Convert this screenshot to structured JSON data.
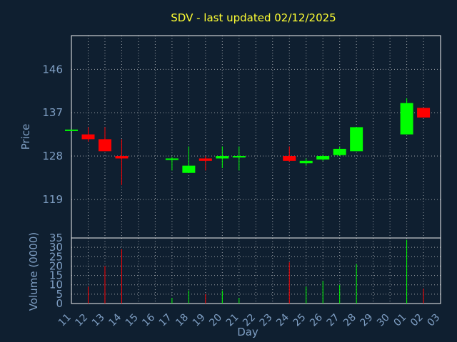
{
  "title": "SDV - last updated 02/12/2025",
  "chart_data": {
    "type": "candlestick",
    "title": "SDV - last updated 02/12/2025",
    "xlabel": "Day",
    "ylabel": "Price",
    "volume_ylabel": "Volume (0000)",
    "x_tick_labels": [
      "11",
      "12",
      "13",
      "14",
      "15",
      "16",
      "17",
      "18",
      "19",
      "20",
      "21",
      "22",
      "23",
      "24",
      "25",
      "26",
      "27",
      "28",
      "29",
      "30",
      "01",
      "02",
      "03"
    ],
    "price_y_ticks": [
      119,
      128,
      137,
      146
    ],
    "price_ylim": [
      111,
      153
    ],
    "volume_y_ticks": [
      0,
      5,
      10,
      15,
      20,
      25,
      30,
      35
    ],
    "volume_ylim": [
      0,
      35
    ],
    "grid": true,
    "up_color": "#00ff00",
    "down_color": "#ff0000",
    "candles": [
      {
        "day": "11",
        "open": 133.5,
        "high": 133.5,
        "low": 133.5,
        "close": 133.5,
        "volume": 0,
        "color": "up"
      },
      {
        "day": "12",
        "open": 132.5,
        "high": 134.0,
        "low": 131.0,
        "close": 131.5,
        "volume": 9,
        "color": "down"
      },
      {
        "day": "13",
        "open": 131.5,
        "high": 134.0,
        "low": 129.0,
        "close": 129.0,
        "volume": 20,
        "color": "down"
      },
      {
        "day": "14",
        "open": 128.0,
        "high": 131.5,
        "low": 122.0,
        "close": 127.5,
        "volume": 29,
        "color": "down"
      },
      {
        "day": "17",
        "open": 127.2,
        "high": 127.8,
        "low": 125.0,
        "close": 127.5,
        "volume": 3,
        "color": "up"
      },
      {
        "day": "18",
        "open": 124.5,
        "high": 130.0,
        "low": 124.5,
        "close": 126.0,
        "volume": 7,
        "color": "up"
      },
      {
        "day": "19",
        "open": 127.5,
        "high": 128.0,
        "low": 125.0,
        "close": 127.0,
        "volume": 5,
        "color": "down"
      },
      {
        "day": "20",
        "open": 127.5,
        "high": 130.0,
        "low": 125.5,
        "close": 128.0,
        "volume": 7,
        "color": "up"
      },
      {
        "day": "21",
        "open": 127.8,
        "high": 130.0,
        "low": 125.0,
        "close": 128.0,
        "volume": 3,
        "color": "up"
      },
      {
        "day": "24",
        "open": 128.0,
        "high": 130.0,
        "low": 126.8,
        "close": 127.0,
        "volume": 22,
        "color": "down"
      },
      {
        "day": "25",
        "open": 126.5,
        "high": 127.5,
        "low": 126.0,
        "close": 127.0,
        "volume": 9,
        "color": "up"
      },
      {
        "day": "26",
        "open": 127.3,
        "high": 128.3,
        "low": 127.0,
        "close": 128.0,
        "volume": 12,
        "color": "up"
      },
      {
        "day": "27",
        "open": 128.2,
        "high": 130.0,
        "low": 128.0,
        "close": 129.5,
        "volume": 10,
        "color": "up"
      },
      {
        "day": "28",
        "open": 129.0,
        "high": 134.0,
        "low": 129.0,
        "close": 134.0,
        "volume": 21,
        "color": "up"
      },
      {
        "day": "01",
        "open": 132.5,
        "high": 140.0,
        "low": 132.5,
        "close": 139.0,
        "volume": 34,
        "color": "up"
      },
      {
        "day": "02",
        "open": 138.0,
        "high": 138.0,
        "low": 136.0,
        "close": 136.0,
        "volume": 8,
        "color": "down"
      }
    ]
  }
}
